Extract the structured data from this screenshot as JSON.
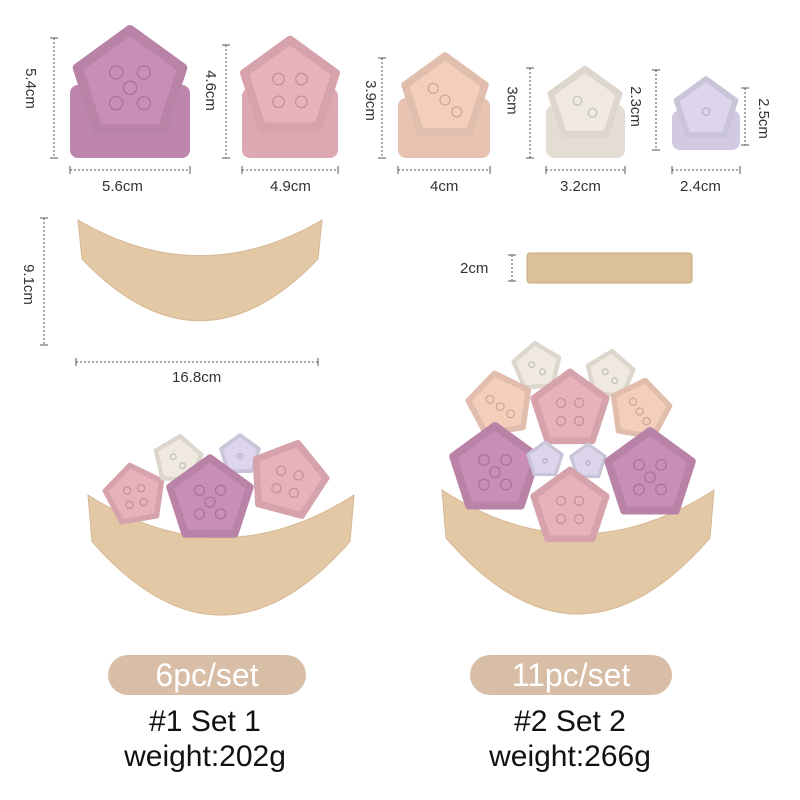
{
  "pieces": [
    {
      "height": "5.4cm",
      "width": "5.6cm",
      "color": "#c98db6",
      "dots": 5
    },
    {
      "height": "4.6cm",
      "width": "4.9cm",
      "color": "#e9b1bb",
      "dots": 4
    },
    {
      "height": "3.9cm",
      "width": "4cm",
      "color": "#f4cdbb",
      "dots": 3
    },
    {
      "height": "3cm",
      "width": "3.2cm",
      "color": "#efe9df",
      "dots": 2
    },
    {
      "height": "2.3cm",
      "width": "2.4cm",
      "side": "2.5cm",
      "color": "#dcd5ec",
      "dots": 1
    }
  ],
  "moon": {
    "height": "9.1cm",
    "width": "16.8cm",
    "color": "#e3c8a6"
  },
  "stick": {
    "thickness": "2cm",
    "color": "#dcc09a"
  },
  "sets": [
    {
      "count_label": "6pc/set",
      "name": "#1 Set 1",
      "weight": "weight:202g"
    },
    {
      "count_label": "11pc/set",
      "name": "#2 Set 2",
      "weight": "weight:266g"
    }
  ],
  "pill_color": "#d8bea6"
}
